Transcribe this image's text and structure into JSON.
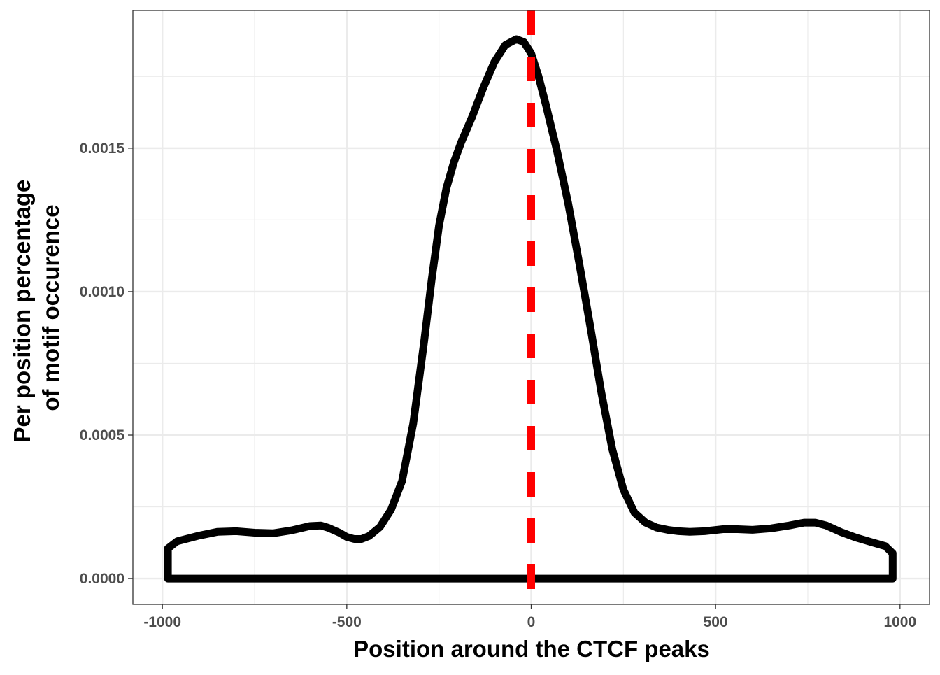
{
  "chart_data": {
    "type": "area",
    "title": "",
    "xlabel": "Position around the CTCF peaks",
    "ylabel_lines": [
      "Per position percentage",
      "of motif occurence"
    ],
    "xlim": [
      -1080,
      1080
    ],
    "ylim": [
      -9e-05,
      0.00198
    ],
    "x_ticks": [
      -1000,
      -500,
      0,
      500,
      1000
    ],
    "x_tick_labels": [
      "-1000",
      "-500",
      "0",
      "500",
      "1000"
    ],
    "x_minor_ticks": [
      -750,
      -250,
      250,
      750
    ],
    "y_ticks": [
      0.0,
      0.0005,
      0.001,
      0.0015
    ],
    "y_tick_labels": [
      "0.0000",
      "0.0005",
      "0.0010",
      "0.0015"
    ],
    "y_minor_ticks": [
      0.00025,
      0.00075,
      0.00125,
      0.00175
    ],
    "grid": true,
    "legend": "none",
    "colors": {
      "density_line": "#000000",
      "vline": "#ff0000",
      "grid": "#ebebeb",
      "panel_border": "#333333",
      "tick_text": "#4d4d4d"
    },
    "vline": {
      "x": 0,
      "style": "dashed"
    },
    "series": [
      {
        "x": [
          -985,
          -960,
          -900,
          -850,
          -800,
          -750,
          -700,
          -650,
          -600,
          -570,
          -550,
          -520,
          -500,
          -480,
          -460,
          -440,
          -410,
          -380,
          -350,
          -320,
          -290,
          -270,
          -250,
          -230,
          -210,
          -190,
          -160,
          -130,
          -100,
          -70,
          -40,
          -20,
          0,
          20,
          40,
          70,
          100,
          130,
          160,
          190,
          220,
          250,
          280,
          310,
          340,
          370,
          400,
          430,
          470,
          520,
          560,
          600,
          650,
          700,
          740,
          770,
          800,
          840,
          880,
          920,
          960,
          980
        ],
        "y": [
          0.000105,
          0.00013,
          0.00015,
          0.000163,
          0.000165,
          0.00016,
          0.000158,
          0.000168,
          0.000183,
          0.000185,
          0.000177,
          0.00016,
          0.000145,
          0.000138,
          0.000138,
          0.000148,
          0.00018,
          0.00024,
          0.00034,
          0.00054,
          0.00083,
          0.00104,
          0.00123,
          0.00136,
          0.00145,
          0.00152,
          0.00161,
          0.00171,
          0.0018,
          0.00186,
          0.00188,
          0.00187,
          0.00183,
          0.00175,
          0.00165,
          0.00149,
          0.00131,
          0.0011,
          0.00088,
          0.00065,
          0.00045,
          0.00031,
          0.00023,
          0.000195,
          0.000178,
          0.00017,
          0.000165,
          0.000163,
          0.000165,
          0.000172,
          0.000172,
          0.00017,
          0.000175,
          0.000185,
          0.000195,
          0.000195,
          0.000185,
          0.000162,
          0.000143,
          0.000128,
          0.000113,
          8.8e-05
        ]
      }
    ]
  }
}
